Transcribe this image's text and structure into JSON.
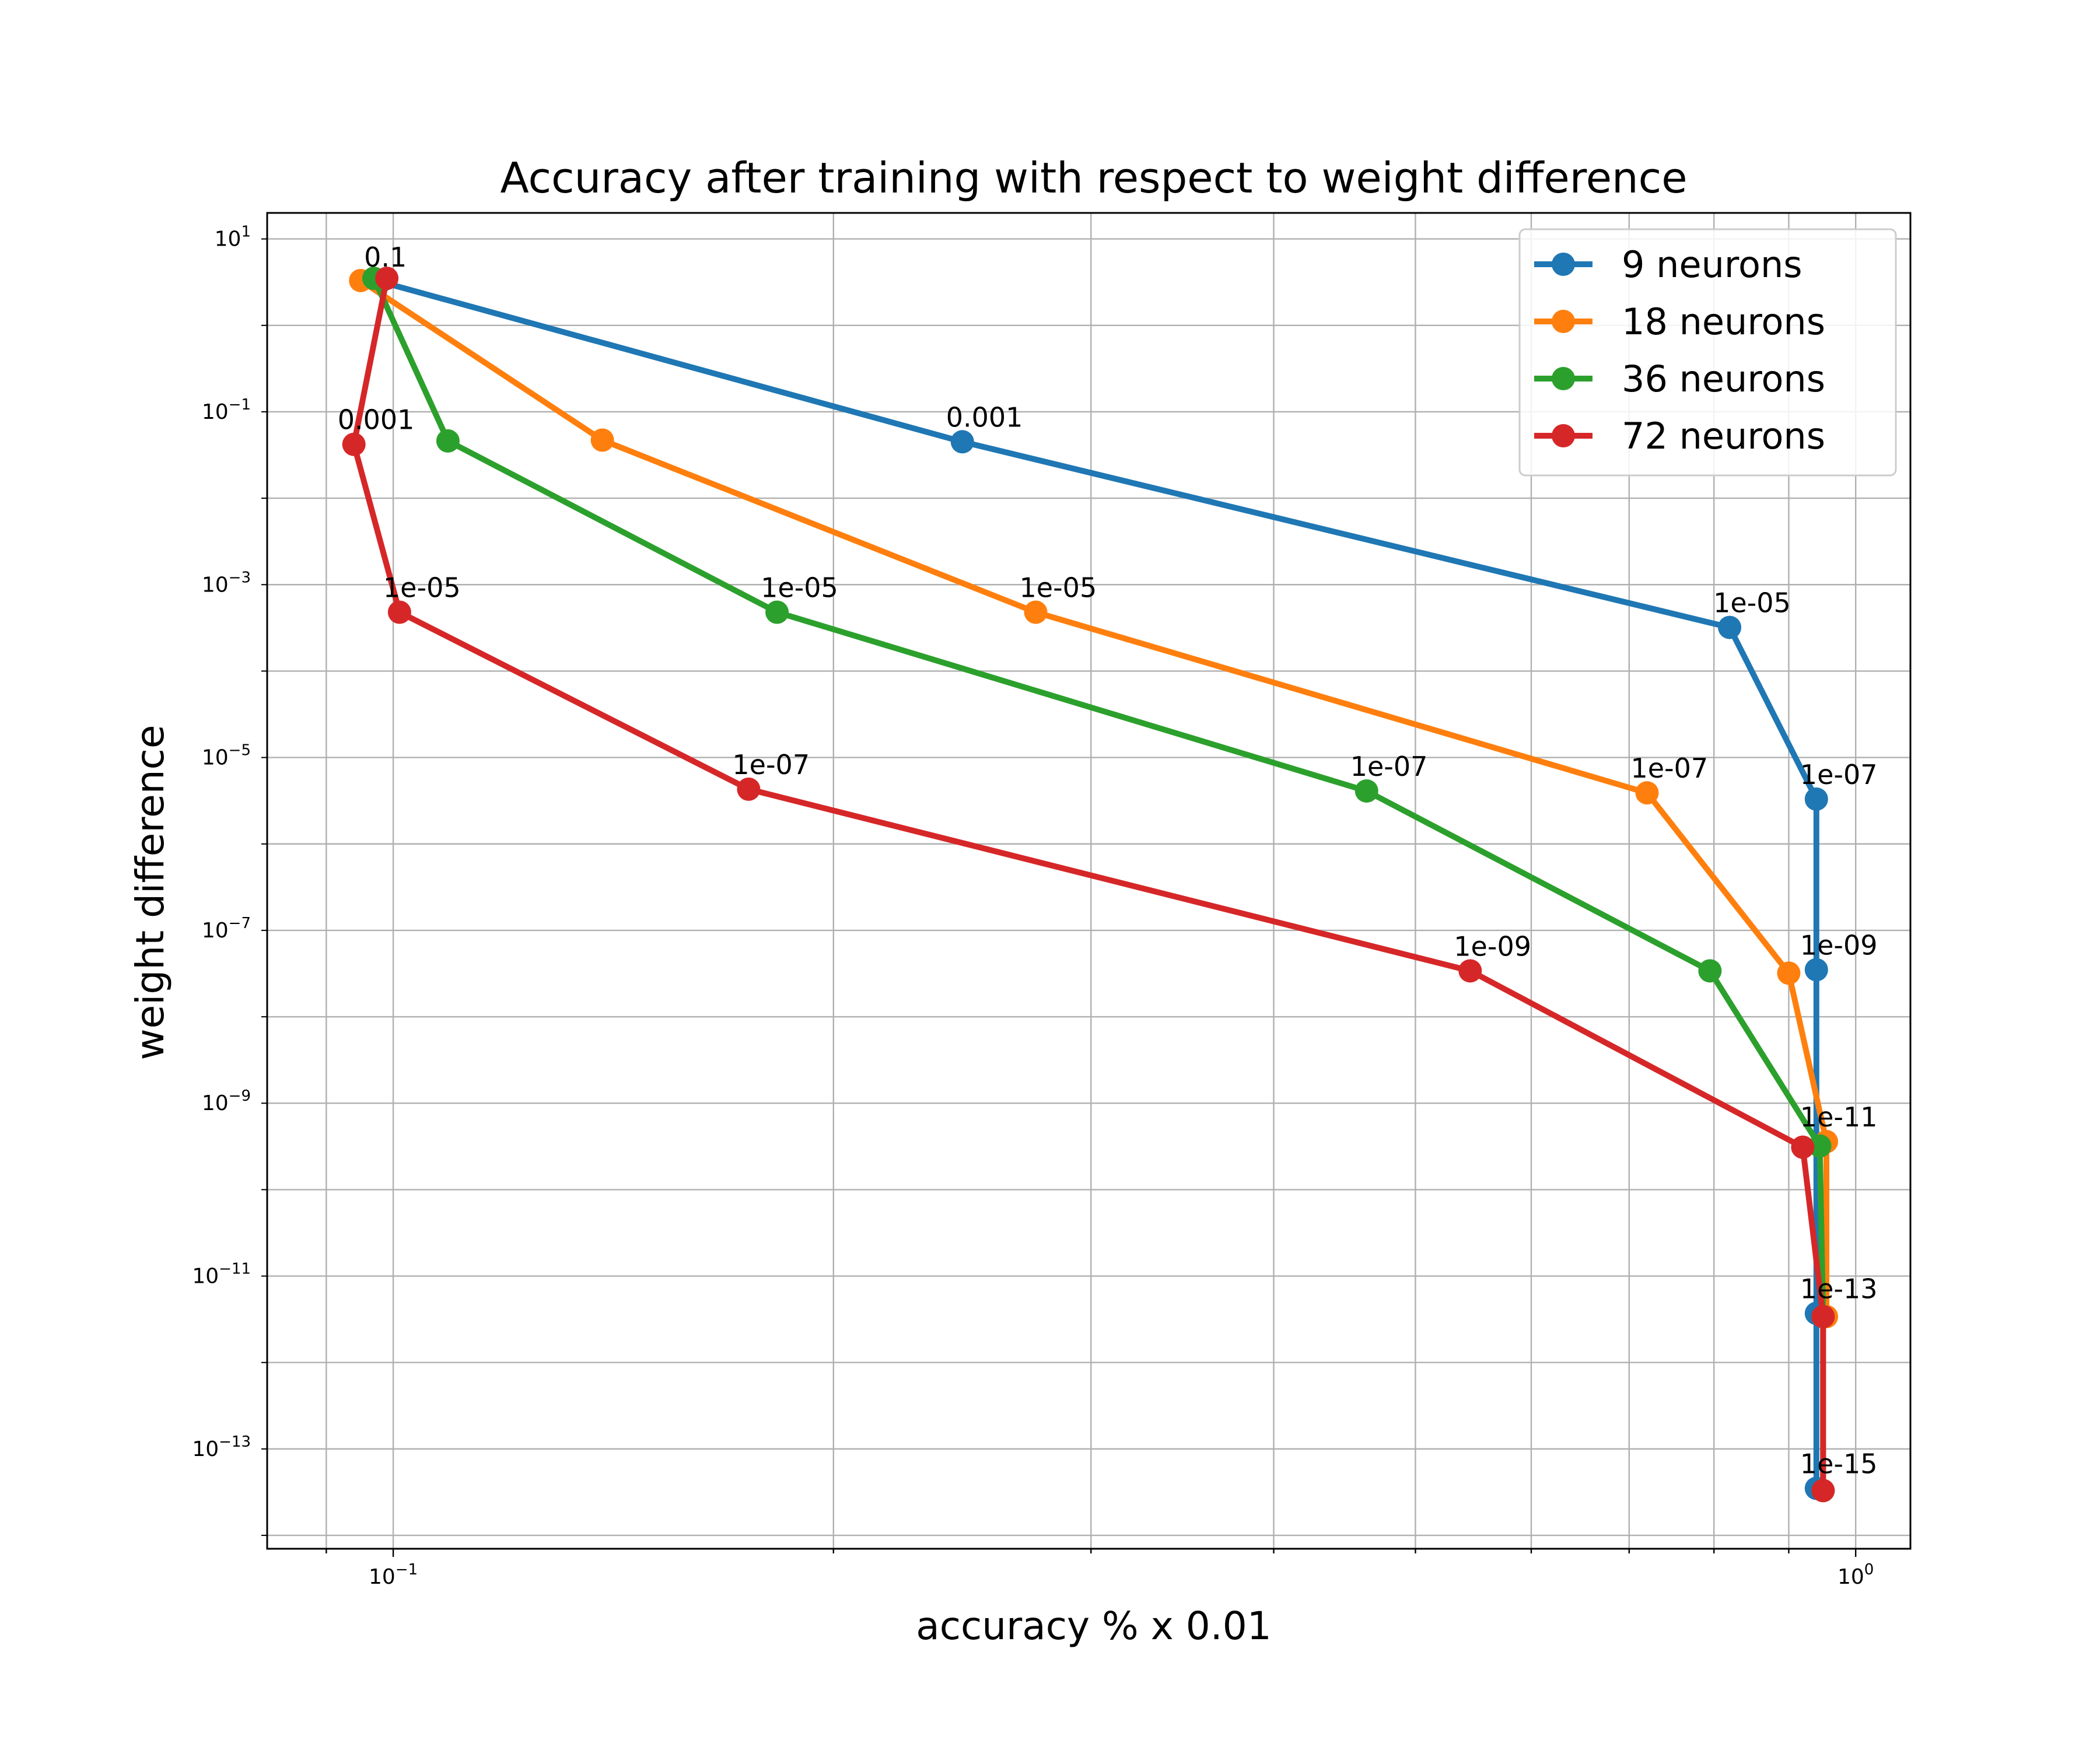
{
  "chart_data": {
    "type": "line",
    "title": "Accuracy after training with respect to weight difference",
    "xlabel": "accuracy % x 0.01",
    "ylabel": "weight difference",
    "xscale": "log",
    "yscale": "log",
    "xlim": [
      0.082,
      1.09
    ],
    "ylim": [
      7e-15,
      20
    ],
    "grid": true,
    "legend_position": "top-right",
    "x_ticks": [
      {
        "value": 0.1,
        "base": "10",
        "exp": "−1"
      },
      {
        "value": 1.0,
        "base": "10",
        "exp": "0"
      }
    ],
    "y_ticks": [
      {
        "value": 10,
        "base": "10",
        "exp": "1"
      },
      {
        "value": 0.1,
        "base": "10",
        "exp": "−1"
      },
      {
        "value": 0.001,
        "base": "10",
        "exp": "−3"
      },
      {
        "value": 1e-05,
        "base": "10",
        "exp": "−5"
      },
      {
        "value": 1e-07,
        "base": "10",
        "exp": "−7"
      },
      {
        "value": 1e-09,
        "base": "10",
        "exp": "−9"
      },
      {
        "value": 1e-11,
        "base": "10",
        "exp": "−11"
      },
      {
        "value": 1e-13,
        "base": "10",
        "exp": "−13"
      }
    ],
    "series": [
      {
        "name": "9 neurons",
        "color": "#1f77b4",
        "x": [
          0.098,
          0.245,
          0.82,
          0.94,
          0.94,
          0.94,
          0.94
        ],
        "y": [
          3.2,
          0.045,
          0.00032,
          3.3e-06,
          3.5e-08,
          3.7e-12,
          3.5e-14
        ]
      },
      {
        "name": "18 neurons",
        "color": "#ff7f0e",
        "x": [
          0.095,
          0.139,
          0.275,
          0.72,
          0.9,
          0.955,
          0.955
        ],
        "y": [
          3.3,
          0.047,
          0.00048,
          3.9e-06,
          3.2e-08,
          3.6e-10,
          3.4e-12
        ]
      },
      {
        "name": "36 neurons",
        "color": "#2ca02c",
        "x": [
          0.097,
          0.109,
          0.183,
          0.463,
          0.795,
          0.945,
          0.95,
          0.95
        ],
        "y": [
          3.5,
          0.046,
          0.00048,
          4.1e-06,
          3.4e-08,
          3.2e-10,
          3.4e-12,
          3.3e-14
        ]
      },
      {
        "name": "72 neurons",
        "color": "#d62728",
        "x": [
          0.099,
          0.094,
          0.101,
          0.175,
          0.545,
          0.92,
          0.95,
          0.95
        ],
        "y": [
          3.5,
          0.042,
          0.00048,
          4.3e-06,
          3.4e-08,
          3.1e-10,
          3.4e-12,
          3.3e-14
        ]
      }
    ],
    "annotations": [
      {
        "text": "0.1",
        "x": 0.098,
        "y": 3.2
      },
      {
        "text": "0.001",
        "x": 0.245,
        "y": 0.045
      },
      {
        "text": "1e-05",
        "x": 0.82,
        "y": 0.00032
      },
      {
        "text": "1e-07",
        "x": 0.94,
        "y": 3.3e-06
      },
      {
        "text": "1e-09",
        "x": 0.94,
        "y": 3.5e-08
      },
      {
        "text": "1e-11",
        "x": 0.94,
        "y": 3.6e-10
      },
      {
        "text": "1e-13",
        "x": 0.94,
        "y": 3.7e-12
      },
      {
        "text": "1e-15",
        "x": 0.94,
        "y": 3.5e-14
      },
      {
        "text": "1e-05",
        "x": 0.275,
        "y": 0.00048
      },
      {
        "text": "1e-07",
        "x": 0.72,
        "y": 3.9e-06
      },
      {
        "text": "1e-05",
        "x": 0.183,
        "y": 0.00048
      },
      {
        "text": "1e-07",
        "x": 0.463,
        "y": 4.1e-06
      },
      {
        "text": "0.001",
        "x": 0.094,
        "y": 0.042
      },
      {
        "text": "1e-05",
        "x": 0.101,
        "y": 0.00048
      },
      {
        "text": "1e-07",
        "x": 0.175,
        "y": 4.3e-06
      },
      {
        "text": "1e-09",
        "x": 0.545,
        "y": 3.4e-08
      }
    ]
  }
}
